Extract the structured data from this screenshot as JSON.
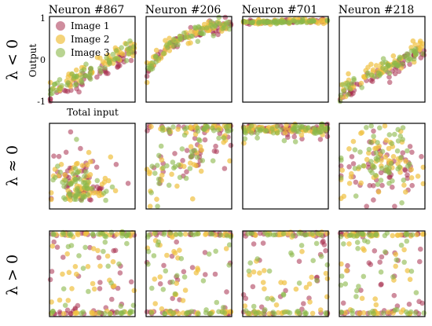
{
  "chart_data": {
    "type": "scatter",
    "column_titles": [
      "Neuron #867",
      "Neuron #206",
      "Neuron #701",
      "Neuron #218"
    ],
    "row_labels": [
      "λ < 0",
      "λ ≈ 0",
      "λ > 0"
    ],
    "ylabel": "Output",
    "xlabel": "Total input",
    "yticks": [
      "1",
      "0",
      "-1"
    ],
    "legend": [
      {
        "name": "Image 1",
        "color": "#a8304f"
      },
      {
        "name": "Image 2",
        "color": "#f0c040"
      },
      {
        "name": "Image 3",
        "color": "#8ab84a"
      }
    ],
    "legend_placement": "upper-left of first panel",
    "ylim": [
      -1,
      1
    ],
    "grid": false,
    "series": [
      {
        "name": "Image 1",
        "color": "#a8304f"
      },
      {
        "name": "Image 2",
        "color": "#f0c040"
      },
      {
        "name": "Image 3",
        "color": "#8ab84a"
      }
    ],
    "panel_patterns": {
      "row0": [
        "linear-rising",
        "saturating-rise",
        "saturated-top",
        "linear-rising"
      ],
      "row1": [
        "low-cluster",
        "scattered-up",
        "band-top",
        "scattered-mid"
      ],
      "row2": [
        "bimodal",
        "bimodal",
        "bimodal",
        "bimodal"
      ]
    }
  }
}
